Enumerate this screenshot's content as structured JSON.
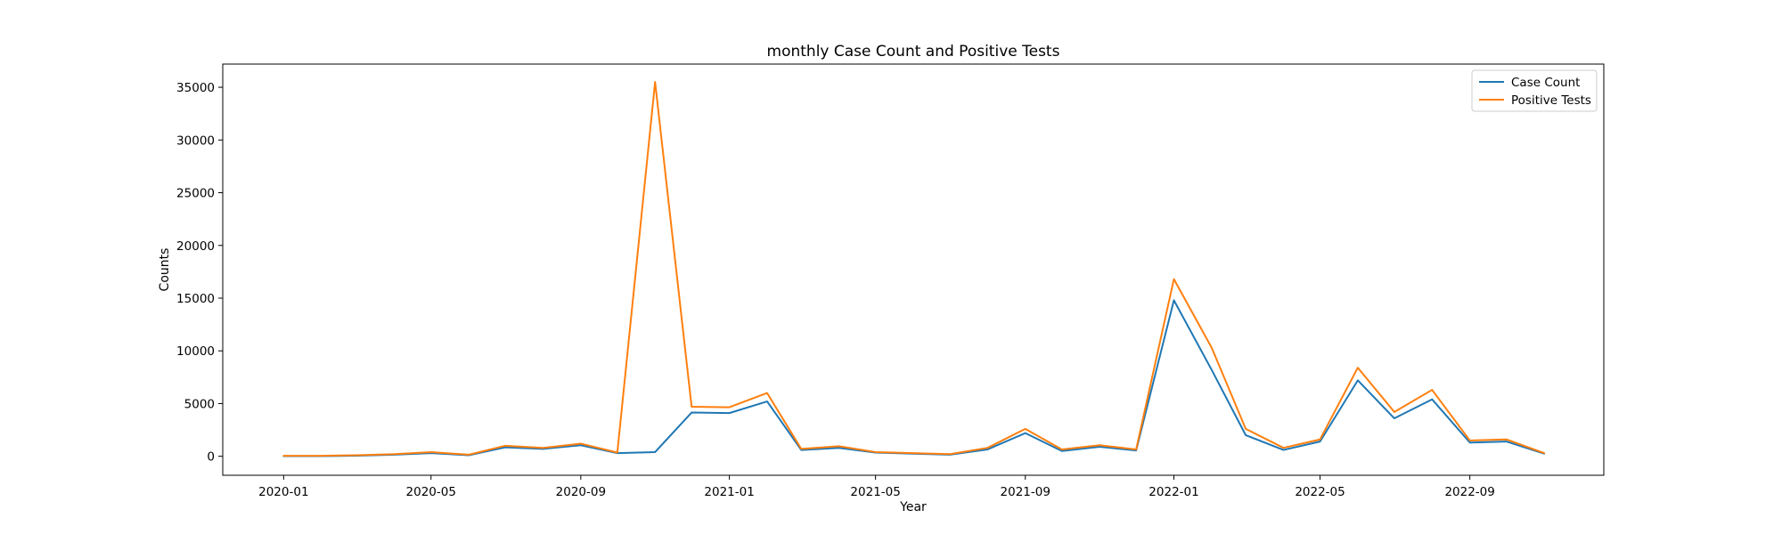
{
  "chart_data": {
    "type": "line",
    "title": "monthly Case Count and Positive Tests",
    "xlabel": "Year",
    "ylabel": "Counts",
    "x": [
      "2020-01",
      "2020-02",
      "2020-03",
      "2020-04",
      "2020-05",
      "2020-06",
      "2020-07",
      "2020-08",
      "2020-09",
      "2020-10",
      "2020-11",
      "2020-12",
      "2021-01",
      "2021-02",
      "2021-03",
      "2021-04",
      "2021-05",
      "2021-06",
      "2021-07",
      "2021-08",
      "2021-09",
      "2021-10",
      "2021-11",
      "2021-12",
      "2022-01",
      "2022-02",
      "2022-03",
      "2022-04",
      "2022-05",
      "2022-06",
      "2022-07",
      "2022-08",
      "2022-09",
      "2022-10",
      "2022-11"
    ],
    "xticks": [
      "2020-01",
      "2020-05",
      "2020-09",
      "2021-01",
      "2021-05",
      "2021-09",
      "2022-01",
      "2022-05",
      "2022-09"
    ],
    "yticks": [
      0,
      5000,
      10000,
      15000,
      20000,
      25000,
      30000,
      35000
    ],
    "ylim": [
      -1800,
      37200
    ],
    "xlim": [
      "2019-11-12",
      "2022-12-20"
    ],
    "grid": false,
    "legend_position": "top-right",
    "series": [
      {
        "name": "Case Count",
        "color": "#1f77b4",
        "values": [
          10,
          20,
          60,
          150,
          300,
          100,
          850,
          700,
          1050,
          300,
          400,
          4150,
          4100,
          5200,
          600,
          800,
          350,
          250,
          150,
          650,
          2200,
          500,
          900,
          550,
          14800,
          8200,
          2000,
          600,
          1400,
          7200,
          3600,
          5400,
          1300,
          1400,
          250
        ]
      },
      {
        "name": "Positive Tests",
        "color": "#ff7f0e",
        "values": [
          50,
          50,
          100,
          200,
          400,
          150,
          1000,
          800,
          1200,
          350,
          35500,
          4700,
          4650,
          6000,
          700,
          950,
          400,
          300,
          200,
          800,
          2600,
          650,
          1050,
          650,
          16800,
          10300,
          2600,
          800,
          1600,
          8400,
          4200,
          6300,
          1500,
          1600,
          300
        ]
      }
    ]
  }
}
